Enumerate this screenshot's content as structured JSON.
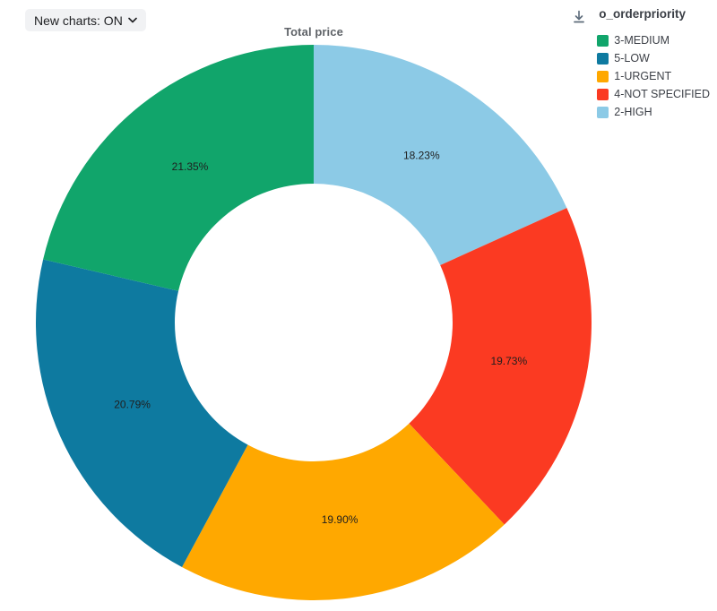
{
  "toolbar": {
    "new_charts_label": "New charts: ON"
  },
  "legend": {
    "title": "o_orderpriority"
  },
  "chart_data": {
    "type": "pie",
    "donut": true,
    "title": "Total price",
    "legend_title": "o_orderpriority",
    "legend_position": "top-right",
    "start_angle_deg": 0,
    "direction": "clockwise",
    "slices": [
      {
        "label": "2-HIGH",
        "value_pct": 18.23,
        "pct_label": "18.23%",
        "color": "#8CCAE6"
      },
      {
        "label": "4-NOT SPECIFIED",
        "value_pct": 19.73,
        "pct_label": "19.73%",
        "color": "#FB3A22"
      },
      {
        "label": "1-URGENT",
        "value_pct": 19.9,
        "pct_label": "19.90%",
        "color": "#FFA800"
      },
      {
        "label": "5-LOW",
        "value_pct": 20.79,
        "pct_label": "20.79%",
        "color": "#0E7AA0"
      },
      {
        "label": "3-MEDIUM",
        "value_pct": 21.35,
        "pct_label": "21.35%",
        "color": "#11A56B"
      }
    ],
    "legend_order": [
      "3-MEDIUM",
      "5-LOW",
      "1-URGENT",
      "4-NOT SPECIFIED",
      "2-HIGH"
    ]
  }
}
